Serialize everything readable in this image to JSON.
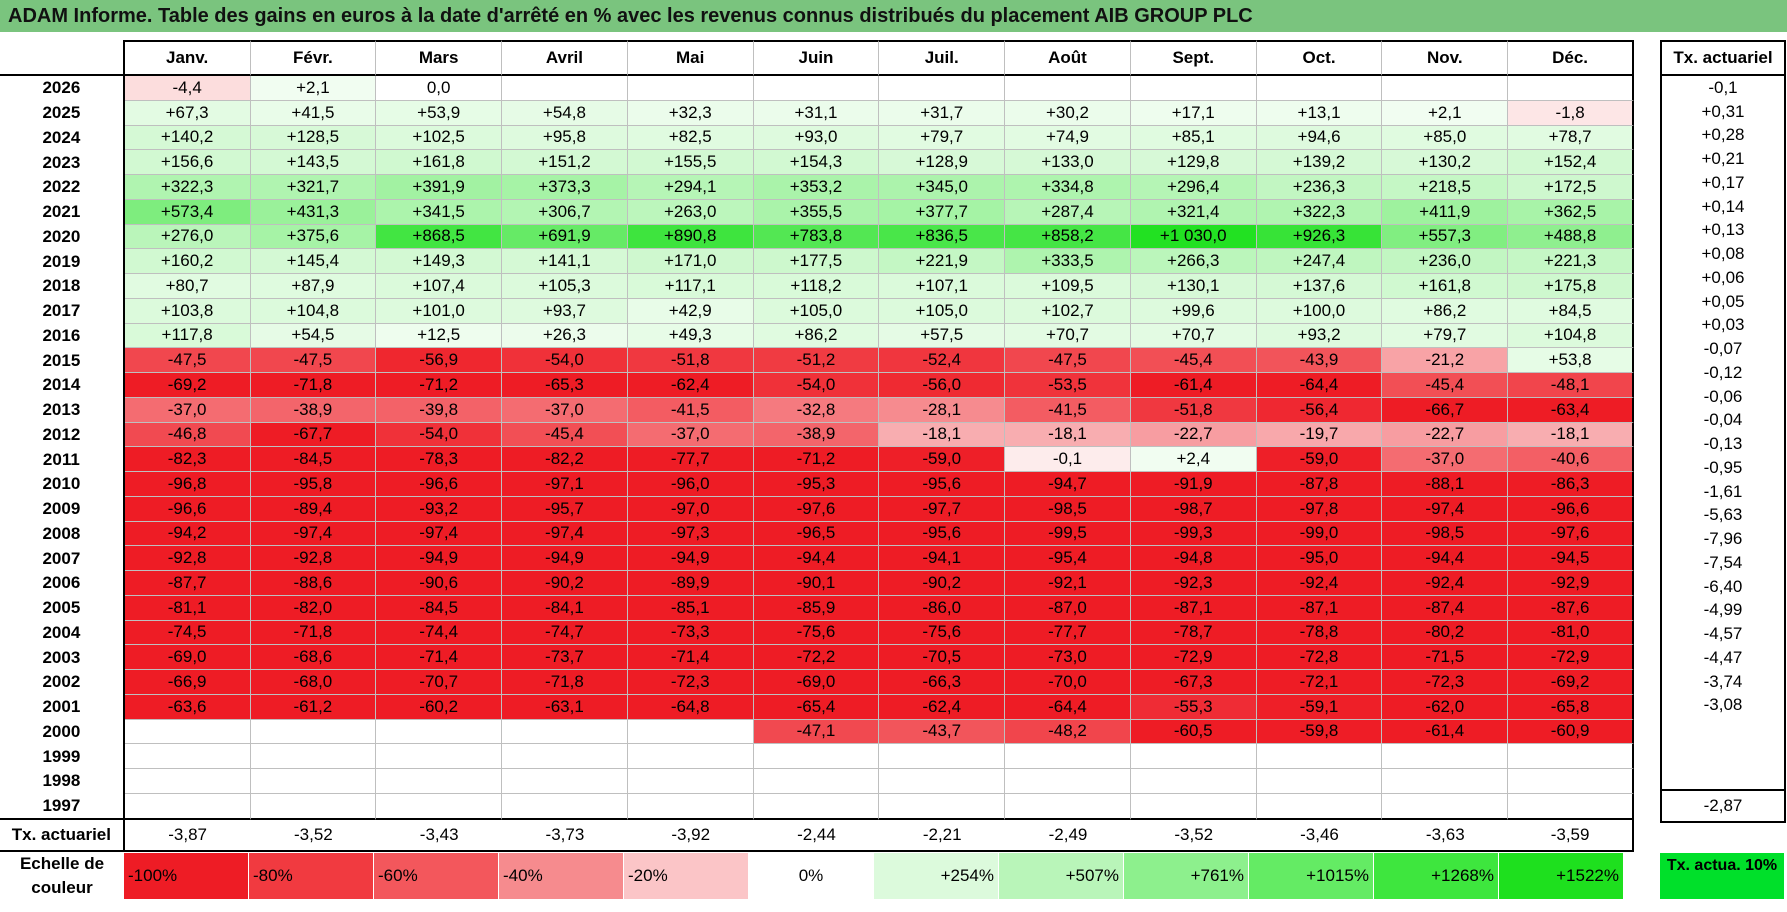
{
  "title": "ADAM Informe. Table des gains en euros à la date d'arrêté en % avec les revenus connus distribués du placement AIB GROUP PLC",
  "months": [
    "Janv.",
    "Févr.",
    "Mars",
    "Avril",
    "Mai",
    "Juin",
    "Juil.",
    "Août",
    "Sept.",
    "Oct.",
    "Nov.",
    "Déc."
  ],
  "side_header": "Tx. actuariel",
  "rows": [
    {
      "year": "2026",
      "values": [
        "-4,4",
        "+2,1",
        "0,0",
        "",
        "",
        "",
        "",
        "",
        "",
        "",
        "",
        ""
      ],
      "tx": "-0,1"
    },
    {
      "year": "2025",
      "values": [
        "+67,3",
        "+41,5",
        "+53,9",
        "+54,8",
        "+32,3",
        "+31,1",
        "+31,7",
        "+30,2",
        "+17,1",
        "+13,1",
        "+2,1",
        "-1,8"
      ],
      "tx": "+0,31"
    },
    {
      "year": "2024",
      "values": [
        "+140,2",
        "+128,5",
        "+102,5",
        "+95,8",
        "+82,5",
        "+93,0",
        "+79,7",
        "+74,9",
        "+85,1",
        "+94,6",
        "+85,0",
        "+78,7"
      ],
      "tx": "+0,28"
    },
    {
      "year": "2023",
      "values": [
        "+156,6",
        "+143,5",
        "+161,8",
        "+151,2",
        "+155,5",
        "+154,3",
        "+128,9",
        "+133,0",
        "+129,8",
        "+139,2",
        "+130,2",
        "+152,4"
      ],
      "tx": "+0,21"
    },
    {
      "year": "2022",
      "values": [
        "+322,3",
        "+321,7",
        "+391,9",
        "+373,3",
        "+294,1",
        "+353,2",
        "+345,0",
        "+334,8",
        "+296,4",
        "+236,3",
        "+218,5",
        "+172,5"
      ],
      "tx": "+0,17"
    },
    {
      "year": "2021",
      "values": [
        "+573,4",
        "+431,3",
        "+341,5",
        "+306,7",
        "+263,0",
        "+355,5",
        "+377,7",
        "+287,4",
        "+321,4",
        "+322,3",
        "+411,9",
        "+362,5"
      ],
      "tx": "+0,14"
    },
    {
      "year": "2020",
      "values": [
        "+276,0",
        "+375,6",
        "+868,5",
        "+691,9",
        "+890,8",
        "+783,8",
        "+836,5",
        "+858,2",
        "+1 030,0",
        "+926,3",
        "+557,3",
        "+488,8"
      ],
      "tx": "+0,13"
    },
    {
      "year": "2019",
      "values": [
        "+160,2",
        "+145,4",
        "+149,3",
        "+141,1",
        "+171,0",
        "+177,5",
        "+221,9",
        "+333,5",
        "+266,3",
        "+247,4",
        "+236,0",
        "+221,3"
      ],
      "tx": "+0,08"
    },
    {
      "year": "2018",
      "values": [
        "+80,7",
        "+87,9",
        "+107,4",
        "+105,3",
        "+117,1",
        "+118,2",
        "+107,1",
        "+109,5",
        "+130,1",
        "+137,6",
        "+161,8",
        "+175,8"
      ],
      "tx": "+0,06"
    },
    {
      "year": "2017",
      "values": [
        "+103,8",
        "+104,8",
        "+101,0",
        "+93,7",
        "+42,9",
        "+105,0",
        "+105,0",
        "+102,7",
        "+99,6",
        "+100,0",
        "+86,2",
        "+84,5"
      ],
      "tx": "+0,05"
    },
    {
      "year": "2016",
      "values": [
        "+117,8",
        "+54,5",
        "+12,5",
        "+26,3",
        "+49,3",
        "+86,2",
        "+57,5",
        "+70,7",
        "+70,7",
        "+93,2",
        "+79,7",
        "+104,8"
      ],
      "tx": "+0,03"
    },
    {
      "year": "2015",
      "values": [
        "-47,5",
        "-47,5",
        "-56,9",
        "-54,0",
        "-51,8",
        "-51,2",
        "-52,4",
        "-47,5",
        "-45,4",
        "-43,9",
        "-21,2",
        "+53,8"
      ],
      "tx": "-0,07"
    },
    {
      "year": "2014",
      "values": [
        "-69,2",
        "-71,8",
        "-71,2",
        "-65,3",
        "-62,4",
        "-54,0",
        "-56,0",
        "-53,5",
        "-61,4",
        "-64,4",
        "-45,4",
        "-48,1"
      ],
      "tx": "-0,12"
    },
    {
      "year": "2013",
      "values": [
        "-37,0",
        "-38,9",
        "-39,8",
        "-37,0",
        "-41,5",
        "-32,8",
        "-28,1",
        "-41,5",
        "-51,8",
        "-56,4",
        "-66,7",
        "-63,4"
      ],
      "tx": "-0,06"
    },
    {
      "year": "2012",
      "values": [
        "-46,8",
        "-67,7",
        "-54,0",
        "-45,4",
        "-37,0",
        "-38,9",
        "-18,1",
        "-18,1",
        "-22,7",
        "-19,7",
        "-22,7",
        "-18,1"
      ],
      "tx": "-0,04"
    },
    {
      "year": "2011",
      "values": [
        "-82,3",
        "-84,5",
        "-78,3",
        "-82,2",
        "-77,7",
        "-71,2",
        "-59,0",
        "-0,1",
        "+2,4",
        "-59,0",
        "-37,0",
        "-40,6"
      ],
      "tx": "-0,13"
    },
    {
      "year": "2010",
      "values": [
        "-96,8",
        "-95,8",
        "-96,6",
        "-97,1",
        "-96,0",
        "-95,3",
        "-95,6",
        "-94,7",
        "-91,9",
        "-87,8",
        "-88,1",
        "-86,3"
      ],
      "tx": "-0,95"
    },
    {
      "year": "2009",
      "values": [
        "-96,6",
        "-89,4",
        "-93,2",
        "-95,7",
        "-97,0",
        "-97,6",
        "-97,7",
        "-98,5",
        "-98,7",
        "-97,8",
        "-97,4",
        "-96,6"
      ],
      "tx": "-1,61"
    },
    {
      "year": "2008",
      "values": [
        "-94,2",
        "-97,4",
        "-97,4",
        "-97,4",
        "-97,3",
        "-96,5",
        "-95,6",
        "-99,5",
        "-99,3",
        "-99,0",
        "-98,5",
        "-97,6"
      ],
      "tx": "-5,63"
    },
    {
      "year": "2007",
      "values": [
        "-92,8",
        "-92,8",
        "-94,9",
        "-94,9",
        "-94,9",
        "-94,4",
        "-94,1",
        "-95,4",
        "-94,8",
        "-95,0",
        "-94,4",
        "-94,5"
      ],
      "tx": "-7,96"
    },
    {
      "year": "2006",
      "values": [
        "-87,7",
        "-88,6",
        "-90,6",
        "-90,2",
        "-89,9",
        "-90,1",
        "-90,2",
        "-92,1",
        "-92,3",
        "-92,4",
        "-92,4",
        "-92,9"
      ],
      "tx": "-7,54"
    },
    {
      "year": "2005",
      "values": [
        "-81,1",
        "-82,0",
        "-84,5",
        "-84,1",
        "-85,1",
        "-85,9",
        "-86,0",
        "-87,0",
        "-87,1",
        "-87,1",
        "-87,4",
        "-87,6"
      ],
      "tx": "-6,40"
    },
    {
      "year": "2004",
      "values": [
        "-74,5",
        "-71,8",
        "-74,4",
        "-74,7",
        "-73,3",
        "-75,6",
        "-75,6",
        "-77,7",
        "-78,7",
        "-78,8",
        "-80,2",
        "-81,0"
      ],
      "tx": "-4,99"
    },
    {
      "year": "2003",
      "values": [
        "-69,0",
        "-68,6",
        "-71,4",
        "-73,7",
        "-71,4",
        "-72,2",
        "-70,5",
        "-73,0",
        "-72,9",
        "-72,8",
        "-71,5",
        "-72,9"
      ],
      "tx": "-4,57"
    },
    {
      "year": "2002",
      "values": [
        "-66,9",
        "-68,0",
        "-70,7",
        "-71,8",
        "-72,3",
        "-69,0",
        "-66,3",
        "-70,0",
        "-67,3",
        "-72,1",
        "-72,3",
        "-69,2"
      ],
      "tx": "-4,47"
    },
    {
      "year": "2001",
      "values": [
        "-63,6",
        "-61,2",
        "-60,2",
        "-63,1",
        "-64,8",
        "-65,4",
        "-62,4",
        "-64,4",
        "-55,3",
        "-59,1",
        "-62,0",
        "-65,8"
      ],
      "tx": "-3,74"
    },
    {
      "year": "2000",
      "values": [
        "",
        "",
        "",
        "",
        "",
        "-47,1",
        "-43,7",
        "-48,2",
        "-60,5",
        "-59,8",
        "-61,4",
        "-60,9"
      ],
      "tx": "-3,08"
    },
    {
      "year": "1999",
      "values": [
        "",
        "",
        "",
        "",
        "",
        "",
        "",
        "",
        "",
        "",
        "",
        ""
      ],
      "tx": ""
    },
    {
      "year": "1998",
      "values": [
        "",
        "",
        "",
        "",
        "",
        "",
        "",
        "",
        "",
        "",
        "",
        ""
      ],
      "tx": ""
    },
    {
      "year": "1997",
      "values": [
        "",
        "",
        "",
        "",
        "",
        "",
        "",
        "",
        "",
        "",
        "",
        ""
      ],
      "tx": ""
    }
  ],
  "tx_row": {
    "label": "Tx. actuariel",
    "values": [
      "-3,87",
      "-3,52",
      "-3,43",
      "-3,73",
      "-3,92",
      "-2,44",
      "-2,21",
      "-2,49",
      "-3,52",
      "-3,46",
      "-3,63",
      "-3,59"
    ],
    "total": "-2,87"
  },
  "scale": {
    "label": "Echelle de couleur",
    "steps": [
      {
        "text": "-100%",
        "color": "#ee1c25"
      },
      {
        "text": "-80%",
        "color": "#f13a40"
      },
      {
        "text": "-60%",
        "color": "#f3575c"
      },
      {
        "text": "-40%",
        "color": "#f68b8e"
      },
      {
        "text": "-20%",
        "color": "#fbc5c7"
      },
      {
        "text": "0%",
        "color": "#ffffff"
      },
      {
        "text": "+254%",
        "color": "#dcfadc"
      },
      {
        "text": "+507%",
        "color": "#b9f5b9"
      },
      {
        "text": "+761%",
        "color": "#8df08d"
      },
      {
        "text": "+1015%",
        "color": "#64eb64"
      },
      {
        "text": "+1268%",
        "color": "#3ee63e"
      },
      {
        "text": "+1522%",
        "color": "#1ee01e"
      }
    ],
    "tx_label": "Tx. actua. 10%",
    "tx_color": "#00e02a"
  },
  "colors": {
    "title_bg": "#7ac47e",
    "red_strong": "#ee1c25",
    "green_strong": "#1ee01e"
  }
}
